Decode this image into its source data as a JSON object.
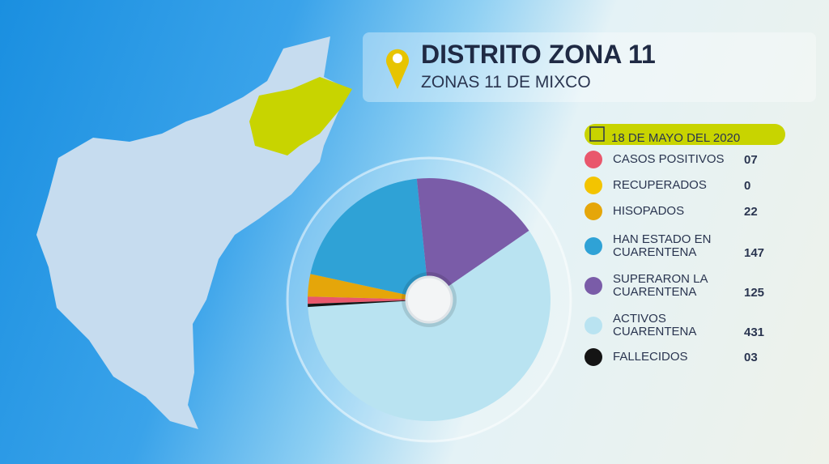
{
  "chart_data": {
    "type": "pie",
    "title": "DISTRITO ZONA 11",
    "subtitle": "ZONAS 11 DE MIXCO",
    "date": "18 DE MAYO DEL 2020",
    "categories": [
      "CASOS POSITIVOS",
      "RECUPERADOS",
      "HISOPADOS",
      "HAN ESTADO EN CUARENTENA",
      "SUPERARON LA CUARENTENA",
      "ACTIVOS CUARENTENA",
      "FALLECIDOS"
    ],
    "values": [
      7,
      0,
      22,
      147,
      125,
      431,
      3
    ],
    "value_labels": [
      "07",
      "0",
      "22",
      "147",
      "125",
      "431",
      "03"
    ],
    "colors": [
      "#e9576c",
      "#f3c400",
      "#e5a60a",
      "#2fa2d6",
      "#7a5ca8",
      "#b9e3f1",
      "#141414"
    ]
  }
}
